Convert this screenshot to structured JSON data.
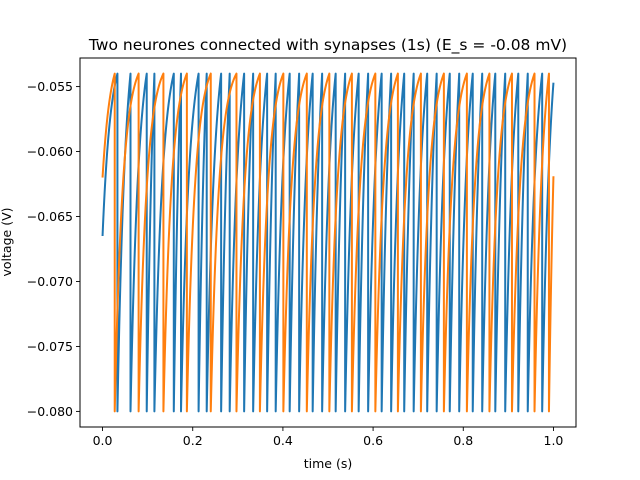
{
  "chart_data": {
    "type": "line",
    "title": "Two neurones connected with synapses (1s) (E_s = -0.08 mV)",
    "xlabel": "time (s)",
    "ylabel": "voltage (V)",
    "xlim": [
      -0.05,
      1.05
    ],
    "ylim": [
      -0.0812,
      -0.0528
    ],
    "xticks": [
      0.0,
      0.2,
      0.4,
      0.6,
      0.8,
      1.0
    ],
    "xtick_labels": [
      "0.0",
      "0.2",
      "0.4",
      "0.6",
      "0.8",
      "1.0"
    ],
    "yticks": [
      -0.08,
      -0.075,
      -0.07,
      -0.065,
      -0.06,
      -0.055
    ],
    "ytick_labels": [
      "−0.080",
      "−0.075",
      "−0.070",
      "−0.065",
      "−0.060",
      "−0.055"
    ],
    "grid": false,
    "v_threshold": -0.054,
    "v_reset": -0.08,
    "series": [
      {
        "color": "#1f77b4",
        "start_voltage": -0.0665,
        "spike_times": [
          0.033,
          0.062,
          0.098,
          0.115,
          0.158,
          0.174,
          0.213,
          0.231,
          0.263,
          0.282,
          0.314,
          0.334,
          0.365,
          0.384,
          0.415,
          0.436,
          0.466,
          0.487,
          0.517,
          0.538,
          0.568,
          0.589,
          0.619,
          0.64,
          0.669,
          0.69,
          0.72,
          0.741,
          0.77,
          0.791,
          0.821,
          0.842,
          0.871,
          0.893,
          0.922,
          0.943,
          0.975
        ],
        "end_voltage": -0.0547
      },
      {
        "color": "#ff7f0e",
        "start_voltage": -0.062,
        "spike_times": [
          0.027,
          0.08,
          0.135,
          0.187,
          0.24,
          0.297,
          0.349,
          0.401,
          0.453,
          0.503,
          0.553,
          0.605,
          0.655,
          0.706,
          0.757,
          0.808,
          0.858,
          0.908,
          0.958,
          0.99
        ],
        "end_voltage": -0.0619
      }
    ]
  }
}
